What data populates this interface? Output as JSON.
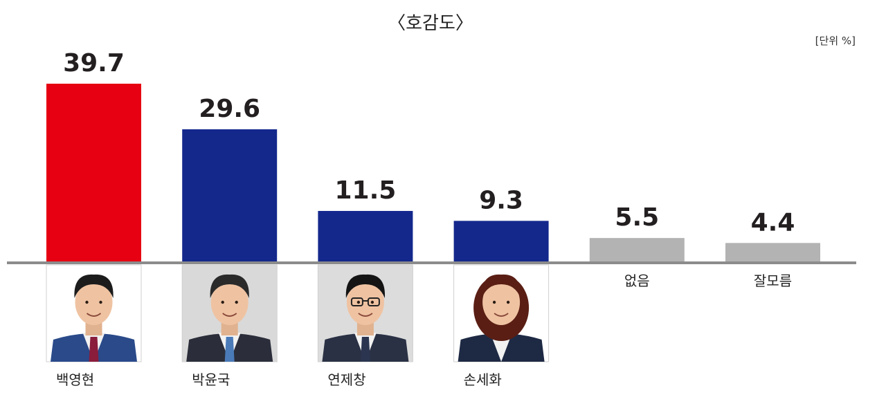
{
  "chart_data": {
    "type": "bar",
    "title": "〈호감도〉",
    "unit": "[단위 %]",
    "ylim": [
      0,
      40
    ],
    "categories": [
      "백영현",
      "박윤국",
      "연제창",
      "손세화",
      "없음",
      "잘모름"
    ],
    "values": [
      39.7,
      29.6,
      11.5,
      9.3,
      5.5,
      4.4
    ],
    "bar_colors": [
      "#e60012",
      "#14288c",
      "#14288c",
      "#14288c",
      "#b3b3b3",
      "#b3b3b3"
    ],
    "photo_colors": {
      "suit": [
        "#2a4a8a",
        "#2b2e3a",
        "#2a3145",
        "#1e2a44"
      ],
      "tie": [
        "#8a1c3c",
        "#4a7ab8",
        "#2b3550",
        null
      ],
      "bg": [
        "#ffffff",
        "#d9d9d9",
        "#dcdcdc",
        "#ffffff"
      ],
      "hair": [
        "#1c1c1c",
        "#2a2a2a",
        "#141414",
        "#5a1e14"
      ]
    },
    "axis_color": "#8c8c8c",
    "grid": false,
    "legend": "none"
  }
}
